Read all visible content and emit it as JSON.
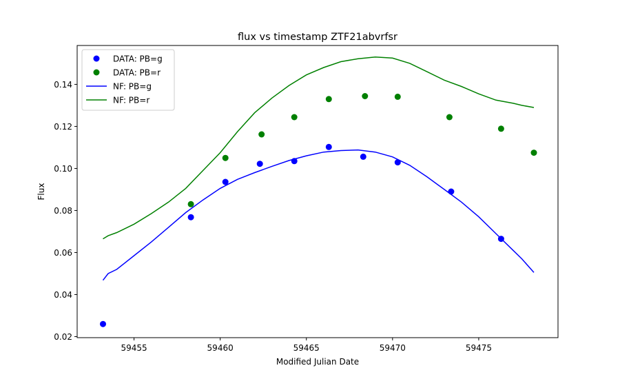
{
  "chart_data": {
    "type": "scatter",
    "title": "flux vs timestamp ZTF21abvrfsr",
    "xlabel": "Modified Julian Date",
    "ylabel": "Flux",
    "xlim": [
      59451.7,
      59479.6
    ],
    "ylim": [
      0.0195,
      0.1585
    ],
    "xticks": [
      59455,
      59460,
      59465,
      59470,
      59475
    ],
    "yticks": [
      0.02,
      0.04,
      0.06,
      0.08,
      0.1,
      0.12,
      0.14
    ],
    "ytick_labels": [
      "0.02",
      "0.04",
      "0.06",
      "0.08",
      "0.10",
      "0.12",
      "0.14"
    ],
    "grid": false,
    "legend_position": "upper-left",
    "colors": {
      "g": "#0000ff",
      "r": "#008000"
    },
    "series": [
      {
        "name": "DATA: PB=g",
        "kind": "scatter",
        "color": "#0000ff",
        "x": [
          59453.2,
          59458.3,
          59460.3,
          59462.3,
          59464.3,
          59466.3,
          59468.3,
          59470.3,
          59473.4,
          59476.3
        ],
        "y": [
          0.026,
          0.0768,
          0.0936,
          0.1022,
          0.1035,
          0.1102,
          0.1056,
          0.1029,
          0.089,
          0.0665
        ]
      },
      {
        "name": "DATA: PB=r",
        "kind": "scatter",
        "color": "#008000",
        "x": [
          59458.3,
          59460.3,
          59462.4,
          59464.3,
          59466.3,
          59468.4,
          59470.3,
          59473.3,
          59476.3,
          59478.2
        ],
        "y": [
          0.083,
          0.105,
          0.1162,
          0.1244,
          0.133,
          0.1344,
          0.1341,
          0.1244,
          0.1189,
          0.1075
        ]
      },
      {
        "name": "NF: PB=g",
        "kind": "line",
        "color": "#0000ff",
        "x": [
          59453.2,
          59453.5,
          59454.0,
          59455.0,
          59456.0,
          59457.0,
          59458.0,
          59459.0,
          59460.0,
          59461.0,
          59462.0,
          59463.0,
          59464.0,
          59465.0,
          59466.0,
          59467.0,
          59468.0,
          59469.0,
          59470.0,
          59471.0,
          59472.0,
          59473.0,
          59474.0,
          59475.0,
          59476.0,
          59477.0,
          59477.5,
          59478.2
        ],
        "y": [
          0.0468,
          0.05,
          0.052,
          0.0585,
          0.065,
          0.072,
          0.079,
          0.085,
          0.0905,
          0.0948,
          0.098,
          0.101,
          0.1038,
          0.106,
          0.1078,
          0.1085,
          0.1088,
          0.1078,
          0.1055,
          0.1015,
          0.096,
          0.09,
          0.084,
          0.077,
          0.069,
          0.061,
          0.057,
          0.0505
        ]
      },
      {
        "name": "NF: PB=r",
        "kind": "line",
        "color": "#008000",
        "x": [
          59453.2,
          59453.5,
          59454.0,
          59455.0,
          59456.0,
          59457.0,
          59458.0,
          59459.0,
          59460.0,
          59461.0,
          59462.0,
          59463.0,
          59464.0,
          59465.0,
          59466.0,
          59467.0,
          59468.0,
          59469.0,
          59470.0,
          59471.0,
          59472.0,
          59473.0,
          59474.0,
          59475.0,
          59476.0,
          59477.0,
          59477.5,
          59478.2
        ],
        "y": [
          0.0665,
          0.068,
          0.0695,
          0.0735,
          0.0785,
          0.084,
          0.0905,
          0.099,
          0.1075,
          0.1175,
          0.1265,
          0.1335,
          0.1395,
          0.1445,
          0.148,
          0.1508,
          0.1522,
          0.153,
          0.1525,
          0.15,
          0.146,
          0.142,
          0.139,
          0.1355,
          0.1325,
          0.131,
          0.13,
          0.129
        ]
      }
    ]
  }
}
